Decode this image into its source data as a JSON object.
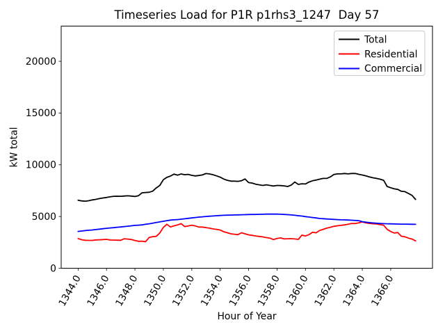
{
  "figure": {
    "title": "Timeseries Load for P1R p1rhs3_1247  Day 57",
    "xlabel": "Hour of Year",
    "ylabel": "kW total"
  },
  "chart_data": {
    "type": "line",
    "title": "Timeseries Load for P1R p1rhs3_1247  Day 57",
    "xlabel": "Hour of Year",
    "ylabel": "kW total",
    "xlim": [
      1342.81,
      1368.94
    ],
    "ylim": [
      0,
      23400
    ],
    "grid": false,
    "legend_position": "upper right",
    "x_ticks": [
      {
        "value": 1344,
        "label": "1344.0"
      },
      {
        "value": 1346,
        "label": "1346.0"
      },
      {
        "value": 1348,
        "label": "1348.0"
      },
      {
        "value": 1350,
        "label": "1350.0"
      },
      {
        "value": 1352,
        "label": "1352.0"
      },
      {
        "value": 1354,
        "label": "1354.0"
      },
      {
        "value": 1356,
        "label": "1356.0"
      },
      {
        "value": 1358,
        "label": "1358.0"
      },
      {
        "value": 1360,
        "label": "1360.0"
      },
      {
        "value": 1362,
        "label": "1362.0"
      },
      {
        "value": 1364,
        "label": "1364.0"
      },
      {
        "value": 1366,
        "label": "1366.0"
      }
    ],
    "y_ticks": [
      {
        "value": 0,
        "label": "0"
      },
      {
        "value": 5000,
        "label": "5000"
      },
      {
        "value": 10000,
        "label": "10000"
      },
      {
        "value": 15000,
        "label": "15000"
      },
      {
        "value": 20000,
        "label": "20000"
      }
    ],
    "x": [
      1344.0,
      1344.25,
      1344.5,
      1344.75,
      1345.0,
      1345.25,
      1345.5,
      1345.75,
      1346.0,
      1346.25,
      1346.5,
      1346.75,
      1347.0,
      1347.25,
      1347.5,
      1347.75,
      1348.0,
      1348.25,
      1348.5,
      1348.75,
      1349.0,
      1349.25,
      1349.5,
      1349.75,
      1350.0,
      1350.25,
      1350.5,
      1350.75,
      1351.0,
      1351.25,
      1351.5,
      1351.75,
      1352.0,
      1352.25,
      1352.5,
      1352.75,
      1353.0,
      1353.25,
      1353.5,
      1353.75,
      1354.0,
      1354.25,
      1354.5,
      1354.75,
      1355.0,
      1355.25,
      1355.5,
      1355.75,
      1356.0,
      1356.25,
      1356.5,
      1356.75,
      1357.0,
      1357.25,
      1357.5,
      1357.75,
      1358.0,
      1358.25,
      1358.5,
      1358.75,
      1359.0,
      1359.25,
      1359.5,
      1359.75,
      1360.0,
      1360.25,
      1360.5,
      1360.75,
      1361.0,
      1361.25,
      1361.5,
      1361.75,
      1362.0,
      1362.25,
      1362.5,
      1362.75,
      1363.0,
      1363.25,
      1363.5,
      1363.75,
      1364.0,
      1364.25,
      1364.5,
      1364.75,
      1365.0,
      1365.25,
      1365.5,
      1365.75,
      1366.0,
      1366.25,
      1366.5,
      1366.75,
      1367.0,
      1367.25,
      1367.5,
      1367.75
    ],
    "series": [
      {
        "name": "Total",
        "color": "#000000",
        "values": [
          6570,
          6510,
          6480,
          6520,
          6600,
          6660,
          6730,
          6790,
          6840,
          6900,
          6950,
          6960,
          6950,
          6980,
          7000,
          6970,
          6930,
          7010,
          7290,
          7320,
          7340,
          7450,
          7760,
          8000,
          8550,
          8780,
          8910,
          9100,
          9000,
          9110,
          9040,
          9070,
          8980,
          8920,
          8960,
          9020,
          9150,
          9110,
          9040,
          8920,
          8800,
          8620,
          8500,
          8420,
          8420,
          8400,
          8460,
          8630,
          8280,
          8230,
          8120,
          8060,
          8000,
          8060,
          8000,
          7950,
          8000,
          7990,
          7960,
          7900,
          8040,
          8330,
          8100,
          8160,
          8140,
          8330,
          8450,
          8520,
          8610,
          8680,
          8680,
          8830,
          9060,
          9120,
          9120,
          9160,
          9120,
          9160,
          9160,
          9080,
          9010,
          8920,
          8830,
          8740,
          8680,
          8610,
          8500,
          7900,
          7780,
          7670,
          7620,
          7440,
          7400,
          7220,
          7040,
          6650
        ]
      },
      {
        "name": "Residential",
        "color": "#ff0000",
        "values": [
          2870,
          2760,
          2700,
          2690,
          2690,
          2740,
          2750,
          2770,
          2790,
          2730,
          2720,
          2710,
          2700,
          2850,
          2820,
          2780,
          2680,
          2600,
          2615,
          2570,
          2970,
          3050,
          3080,
          3400,
          3950,
          4250,
          3990,
          4100,
          4180,
          4310,
          4030,
          4090,
          4160,
          4090,
          3980,
          3980,
          3930,
          3870,
          3800,
          3760,
          3690,
          3530,
          3430,
          3330,
          3290,
          3250,
          3430,
          3330,
          3230,
          3180,
          3120,
          3070,
          3030,
          2960,
          2910,
          2770,
          2870,
          2930,
          2830,
          2850,
          2860,
          2830,
          2790,
          3200,
          3110,
          3250,
          3480,
          3420,
          3650,
          3760,
          3870,
          3960,
          4050,
          4100,
          4140,
          4190,
          4250,
          4330,
          4320,
          4390,
          4470,
          4390,
          4330,
          4300,
          4280,
          4210,
          4160,
          3760,
          3550,
          3400,
          3450,
          3090,
          3040,
          2910,
          2820,
          2640
        ]
      },
      {
        "name": "Commercial",
        "color": "#0000ff",
        "values": [
          3560,
          3600,
          3640,
          3670,
          3700,
          3740,
          3780,
          3820,
          3860,
          3890,
          3920,
          3960,
          3990,
          4030,
          4060,
          4100,
          4140,
          4160,
          4190,
          4250,
          4300,
          4360,
          4420,
          4480,
          4540,
          4600,
          4650,
          4680,
          4700,
          4740,
          4780,
          4820,
          4860,
          4900,
          4940,
          4970,
          5000,
          5030,
          5050,
          5080,
          5100,
          5120,
          5130,
          5140,
          5150,
          5160,
          5170,
          5180,
          5190,
          5200,
          5200,
          5210,
          5220,
          5230,
          5230,
          5230,
          5230,
          5220,
          5200,
          5180,
          5150,
          5120,
          5080,
          5040,
          4990,
          4950,
          4900,
          4860,
          4810,
          4790,
          4760,
          4740,
          4720,
          4700,
          4680,
          4670,
          4660,
          4640,
          4620,
          4600,
          4500,
          4450,
          4410,
          4380,
          4350,
          4330,
          4310,
          4300,
          4290,
          4280,
          4270,
          4265,
          4260,
          4255,
          4250,
          4245
        ]
      }
    ]
  }
}
